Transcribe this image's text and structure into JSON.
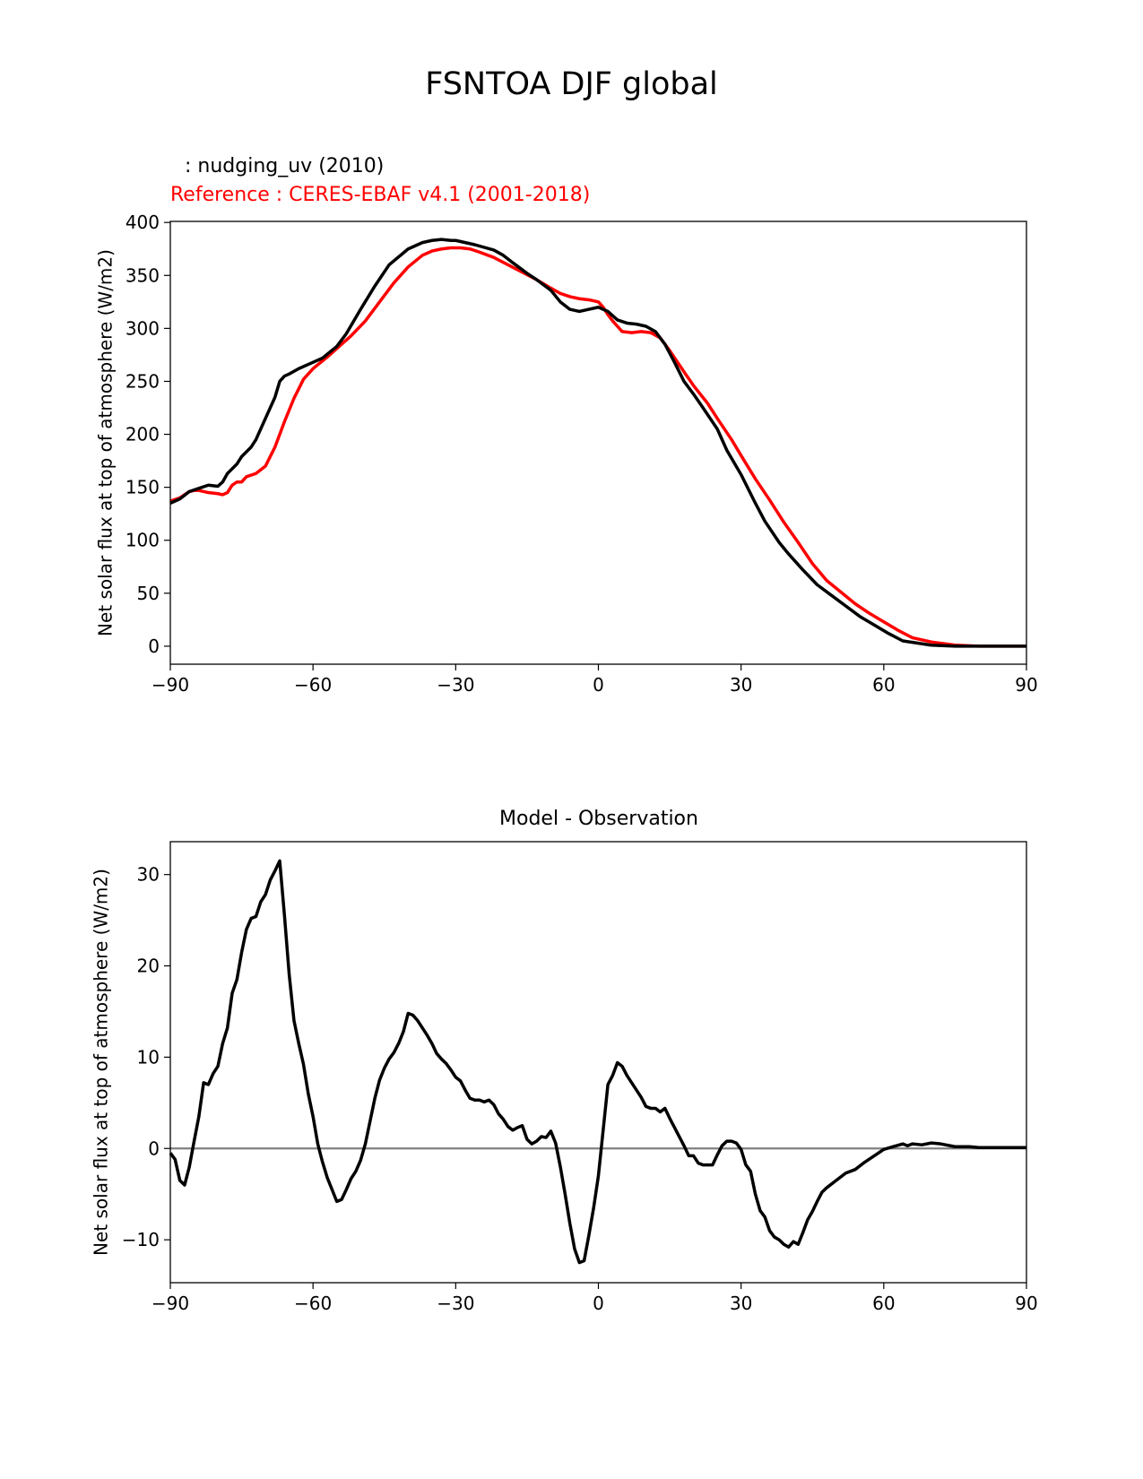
{
  "figure": {
    "suptitle": "FSNTOA DJF global",
    "test_label": ": nudging_uv (2010)",
    "ref_label": "Reference : CERES-EBAF v4.1 (2001-2018)",
    "panel2_title": "Model - Observation",
    "ylabel": "Net solar flux at top of atmosphere (W/m2)"
  },
  "colors": {
    "test": "#000000",
    "reference": "#ff0000",
    "zero_line": "#808080"
  },
  "chart_data": [
    {
      "type": "line",
      "title": "",
      "xlabel": "",
      "ylabel": "Net solar flux at top of atmosphere (W/m2)",
      "xlim": [
        -90,
        90
      ],
      "ylim": [
        -17,
        401
      ],
      "xticks": [
        -90,
        -60,
        -30,
        0,
        30,
        60,
        90
      ],
      "xtick_labels": [
        "−90",
        "−60",
        "−30",
        "0",
        "30",
        "60",
        "90"
      ],
      "yticks": [
        0,
        50,
        100,
        150,
        200,
        250,
        300,
        350,
        400
      ],
      "ytick_labels": [
        "0",
        "50",
        "100",
        "150",
        "200",
        "250",
        "300",
        "350",
        "400"
      ],
      "grid": false,
      "series": [
        {
          "name": ": nudging_uv (2010)",
          "x": [
            -90,
            -88,
            -86,
            -84,
            -82,
            -80,
            -79,
            -78,
            -76,
            -75,
            -73,
            -72,
            -70,
            -68,
            -67,
            -66,
            -65,
            -63,
            -60,
            -58,
            -55,
            -53,
            -50,
            -47,
            -44,
            -40,
            -37,
            -35,
            -33,
            -31,
            -30,
            -28,
            -26,
            -22,
            -20,
            -18,
            -15,
            -13,
            -10,
            -8,
            -6,
            -4,
            -2,
            0,
            2,
            4,
            6,
            8,
            10,
            12,
            14,
            16,
            18,
            20,
            22,
            25,
            27,
            30,
            33,
            35,
            38,
            40,
            43,
            46,
            49,
            52,
            55,
            58,
            61,
            64,
            67,
            70,
            75,
            80,
            90
          ],
          "y": [
            135,
            139,
            146,
            149,
            152,
            151,
            155,
            163,
            172,
            179,
            188,
            195,
            215,
            235,
            250,
            255,
            257,
            262,
            268,
            272,
            283,
            295,
            318,
            340,
            360,
            375,
            381,
            383,
            384,
            383,
            383,
            381,
            379,
            374,
            369,
            362,
            352,
            346,
            336,
            325,
            318,
            316,
            318,
            320,
            316,
            308,
            305,
            304,
            302,
            297,
            285,
            268,
            250,
            238,
            225,
            205,
            185,
            162,
            135,
            118,
            98,
            87,
            72,
            58,
            48,
            38,
            28,
            20,
            12,
            5,
            3,
            1,
            0,
            0,
            0
          ]
        },
        {
          "name": "Reference : CERES-EBAF v4.1 (2001-2018)",
          "x": [
            -90,
            -88,
            -86,
            -85,
            -84,
            -82,
            -80,
            -79,
            -78,
            -77,
            -76,
            -75,
            -74,
            -72,
            -70,
            -68,
            -66,
            -64,
            -62,
            -60,
            -57,
            -55,
            -52,
            -49,
            -46,
            -43,
            -40,
            -37,
            -35,
            -33,
            -31,
            -29,
            -27,
            -25,
            -22,
            -19,
            -16,
            -13,
            -10,
            -8,
            -6,
            -4,
            -2,
            0,
            1,
            2,
            3,
            4,
            5,
            7,
            9,
            11,
            13,
            15,
            18,
            20,
            23,
            25,
            28,
            30,
            33,
            36,
            39,
            42,
            45,
            48,
            51,
            54,
            57,
            60,
            63,
            66,
            70,
            75,
            80,
            90
          ],
          "y": [
            137,
            140,
            146,
            147,
            147,
            145,
            144,
            143,
            145,
            152,
            155,
            155,
            160,
            163,
            170,
            188,
            212,
            234,
            252,
            262,
            273,
            281,
            293,
            307,
            325,
            343,
            358,
            369,
            373,
            375,
            376,
            376,
            375,
            372,
            367,
            360,
            353,
            346,
            338,
            333,
            330,
            328,
            327,
            325,
            320,
            313,
            307,
            302,
            297,
            296,
            297,
            296,
            291,
            279,
            259,
            246,
            229,
            215,
            195,
            180,
            158,
            138,
            117,
            98,
            78,
            62,
            51,
            40,
            31,
            23,
            15,
            8,
            4,
            1,
            0,
            0
          ]
        }
      ]
    },
    {
      "type": "line",
      "title": "Model - Observation",
      "xlabel": "",
      "ylabel": "Net solar flux at top of atmosphere (W/m2)",
      "xlim": [
        -90,
        90
      ],
      "ylim": [
        -14.7,
        33.6
      ],
      "xticks": [
        -90,
        -60,
        -30,
        0,
        30,
        60,
        90
      ],
      "xtick_labels": [
        "−90",
        "−60",
        "−30",
        "0",
        "30",
        "60",
        "90"
      ],
      "yticks": [
        -10,
        0,
        10,
        20,
        30
      ],
      "ytick_labels": [
        "−10",
        "0",
        "10",
        "20",
        "30"
      ],
      "zero_line": true,
      "grid": false,
      "series": [
        {
          "name": "",
          "x": [
            -90,
            -89,
            -88,
            -87,
            -86,
            -85,
            -84,
            -83,
            -82,
            -81,
            -80,
            -79,
            -78,
            -77,
            -76,
            -75,
            -74,
            -73,
            -72,
            -71,
            -70,
            -69,
            -68,
            -67,
            -66,
            -65,
            -64,
            -63,
            -62,
            -61,
            -60,
            -59,
            -58,
            -57,
            -56,
            -55,
            -54,
            -53,
            -52,
            -51,
            -50,
            -49,
            -48,
            -47,
            -46,
            -45,
            -44,
            -43,
            -42,
            -41,
            -40,
            -39,
            -38,
            -37,
            -36,
            -35,
            -34,
            -33,
            -32,
            -31,
            -30,
            -29,
            -28,
            -27,
            -26,
            -25,
            -24,
            -23,
            -22,
            -21,
            -20,
            -19,
            -18,
            -17,
            -16,
            -15,
            -14,
            -13,
            -12,
            -11,
            -10,
            -9,
            -8,
            -7,
            -6,
            -5,
            -4,
            -3,
            -2,
            -1,
            0,
            1,
            2,
            3,
            4,
            5,
            6,
            7,
            8,
            9,
            10,
            11,
            12,
            13,
            14,
            15,
            16,
            17,
            18,
            19,
            20,
            21,
            22,
            23,
            24,
            25,
            26,
            27,
            28,
            29,
            30,
            31,
            32,
            33,
            34,
            35,
            36,
            37,
            38,
            39,
            40,
            41,
            42,
            43,
            44,
            45,
            46,
            47,
            48,
            50,
            52,
            54,
            56,
            58,
            60,
            62,
            64,
            65,
            66,
            68,
            70,
            72,
            75,
            78,
            80,
            85,
            90
          ],
          "y": [
            -0.5,
            -1.2,
            -3.5,
            -4.0,
            -2.0,
            0.8,
            3.5,
            7.2,
            7.0,
            8.2,
            9.0,
            11.5,
            13.2,
            17.0,
            18.5,
            21.5,
            24.0,
            25.2,
            25.4,
            27.0,
            27.8,
            29.4,
            30.4,
            31.5,
            25.5,
            19.0,
            14.0,
            11.5,
            9.2,
            6.0,
            3.5,
            0.5,
            -1.5,
            -3.2,
            -4.5,
            -5.8,
            -5.6,
            -4.5,
            -3.3,
            -2.5,
            -1.3,
            0.5,
            3.0,
            5.5,
            7.5,
            8.8,
            9.8,
            10.5,
            11.5,
            12.8,
            14.8,
            14.6,
            14.0,
            13.2,
            12.4,
            11.5,
            10.4,
            9.8,
            9.3,
            8.6,
            7.8,
            7.4,
            6.4,
            5.5,
            5.3,
            5.3,
            5.1,
            5.3,
            4.8,
            3.8,
            3.2,
            2.4,
            2.0,
            2.3,
            2.5,
            1.0,
            0.5,
            0.8,
            1.3,
            1.2,
            1.9,
            0.6,
            -2.0,
            -5.0,
            -8.2,
            -11.0,
            -12.5,
            -12.3,
            -9.5,
            -6.5,
            -3.0,
            2.0,
            7.0,
            8.0,
            9.4,
            9.0,
            8.0,
            7.2,
            6.4,
            5.6,
            4.6,
            4.4,
            4.4,
            4.0,
            4.4,
            3.3,
            2.3,
            1.3,
            0.3,
            -0.8,
            -0.8,
            -1.6,
            -1.8,
            -1.8,
            -1.8,
            -0.7,
            0.3,
            0.8,
            0.8,
            0.6,
            -0.1,
            -1.8,
            -2.5,
            -5.0,
            -6.8,
            -7.5,
            -9.0,
            -9.7,
            -10.0,
            -10.5,
            -10.8,
            -10.2,
            -10.5,
            -9.2,
            -7.8,
            -6.9,
            -5.8,
            -4.8,
            -4.3,
            -3.5,
            -2.7,
            -2.3,
            -1.5,
            -0.8,
            -0.1,
            0.2,
            0.5,
            0.3,
            0.5,
            0.4,
            0.6,
            0.5,
            0.2,
            0.2,
            0.1,
            0.1,
            0.1
          ]
        }
      ]
    }
  ]
}
